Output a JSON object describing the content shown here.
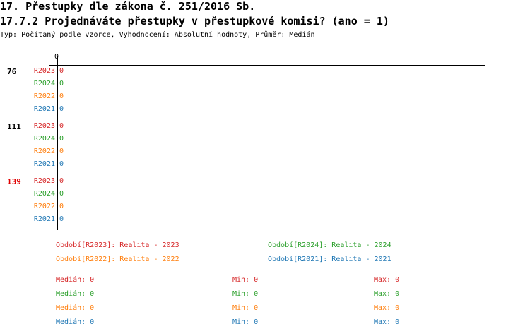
{
  "header": {
    "title": "17. Přestupky dle zákona č. 251/2016 Sb.",
    "subtitle": "17.7.2 Projednáváte přestupky v přestupkové komisi? (ano = 1)",
    "info": "Typ: Počítaný podle vzorce, Vyhodnocení: Absolutní hodnoty, Průměr: Medián"
  },
  "colors": {
    "R2023": "#d62728",
    "R2024": "#2ca02c",
    "R2022": "#ff7f0e",
    "R2021": "#1f77b4",
    "highlight": "#e00000",
    "default": "#000000"
  },
  "chart_data": {
    "type": "bar",
    "orientation": "horizontal",
    "x_tick_labels": [
      "0"
    ],
    "xlim": [
      0,
      1
    ],
    "categories": [
      {
        "label": "76",
        "highlight": false
      },
      {
        "label": "111",
        "highlight": false
      },
      {
        "label": "139",
        "highlight": true
      }
    ],
    "series": [
      {
        "name": "R2023",
        "values": [
          0,
          0,
          0
        ]
      },
      {
        "name": "R2024",
        "values": [
          0,
          0,
          0
        ]
      },
      {
        "name": "R2022",
        "values": [
          0,
          0,
          0
        ]
      },
      {
        "name": "R2021",
        "values": [
          0,
          0,
          0
        ]
      }
    ],
    "value_labels": [
      "0",
      "0",
      "0"
    ]
  },
  "legend": [
    {
      "key": "R2023",
      "text": "Období[R2023]: Realita - 2023"
    },
    {
      "key": "R2024",
      "text": "Období[R2024]: Realita - 2024"
    },
    {
      "key": "R2022",
      "text": "Období[R2022]: Realita - 2022"
    },
    {
      "key": "R2021",
      "text": "Období[R2021]: Realita - 2021"
    }
  ],
  "stats": [
    {
      "key": "R2023",
      "median": "Medián: 0",
      "min": "Min: 0",
      "max": "Max: 0"
    },
    {
      "key": "R2024",
      "median": "Medián: 0",
      "min": "Min: 0",
      "max": "Max: 0"
    },
    {
      "key": "R2022",
      "median": "Medián: 0",
      "min": "Min: 0",
      "max": "Max: 0"
    },
    {
      "key": "R2021",
      "median": "Medián: 0",
      "min": "Min: 0",
      "max": "Max: 0"
    }
  ]
}
